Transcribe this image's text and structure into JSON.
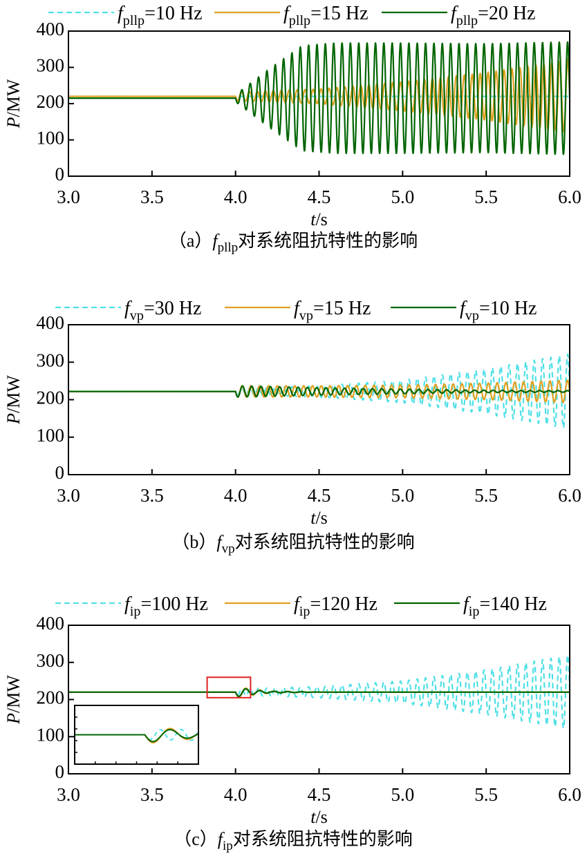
{
  "chart_data": [
    {
      "type": "line",
      "panel": "a",
      "caption_prefix": "（a）",
      "caption_sym": "f",
      "caption_sub": "pllp",
      "caption_suffix": "对系统阻抗特性的影响",
      "xlabel_sym": "t",
      "xlabel_unit": "/s",
      "ylabel_sym": "P",
      "ylabel_unit": "/MW",
      "xlim": [
        3.0,
        6.0
      ],
      "ylim": [
        0,
        400
      ],
      "xticks": [
        "3.0",
        "3.5",
        "4.0",
        "4.5",
        "5.0",
        "5.5",
        "6.0"
      ],
      "yticks": [
        "0",
        "100",
        "200",
        "300",
        "400"
      ],
      "legend_position": "top",
      "series": [
        {
          "sym": "f",
          "sub": "pllp",
          "name": "=10 Hz",
          "color": "#4fe0e6",
          "dash": true,
          "baseline": 220,
          "disturbance_t": 4.0,
          "osc_hz": 22,
          "envelope_t": [
            4.0,
            4.5,
            5.0,
            5.5,
            6.0
          ],
          "envelope_amp": [
            0,
            0,
            0,
            0,
            0
          ]
        },
        {
          "sym": "f",
          "sub": "pllp",
          "name": "=15 Hz",
          "color": "#e0a020",
          "dash": false,
          "baseline": 220,
          "disturbance_t": 4.0,
          "osc_hz": 21,
          "envelope_t": [
            4.0,
            4.5,
            5.0,
            5.5,
            6.0
          ],
          "envelope_amp": [
            12,
            20,
            40,
            65,
            100
          ]
        },
        {
          "sym": "f",
          "sub": "pllp",
          "name": "=20 Hz",
          "color": "#006400",
          "dash": false,
          "baseline": 215,
          "disturbance_t": 4.0,
          "osc_hz": 20,
          "envelope_t": [
            4.0,
            4.2,
            4.4,
            4.6,
            5.0,
            5.5,
            6.0
          ],
          "envelope_amp": [
            10,
            80,
            145,
            152,
            152,
            150,
            155
          ]
        }
      ]
    },
    {
      "type": "line",
      "panel": "b",
      "caption_prefix": "（b）",
      "caption_sym": "f",
      "caption_sub": "vp",
      "caption_suffix": "对系统阻抗特性的影响",
      "xlabel_sym": "t",
      "xlabel_unit": "/s",
      "ylabel_sym": "P",
      "ylabel_unit": "/MW",
      "xlim": [
        3.0,
        6.0
      ],
      "ylim": [
        0,
        400
      ],
      "xticks": [
        "3.0",
        "3.5",
        "4.0",
        "4.5",
        "5.0",
        "5.5",
        "6.0"
      ],
      "yticks": [
        "0",
        "100",
        "200",
        "300",
        "400"
      ],
      "legend_position": "top",
      "series": [
        {
          "sym": "f",
          "sub": "vp",
          "name": "=30 Hz",
          "color": "#4fe0e6",
          "dash": true,
          "baseline": 222,
          "disturbance_t": 4.0,
          "osc_hz": 20,
          "envelope_t": [
            4.0,
            4.5,
            5.0,
            5.5,
            6.0
          ],
          "envelope_amp": [
            8,
            15,
            30,
            60,
            100
          ]
        },
        {
          "sym": "f",
          "sub": "vp",
          "name": "=15 Hz",
          "color": "#e0a020",
          "dash": false,
          "baseline": 222,
          "disturbance_t": 4.0,
          "osc_hz": 19,
          "envelope_t": [
            4.0,
            4.5,
            5.0,
            5.5,
            6.0
          ],
          "envelope_amp": [
            15,
            15,
            17,
            22,
            30
          ]
        },
        {
          "sym": "f",
          "sub": "vp",
          "name": "=10 Hz",
          "color": "#006400",
          "dash": false,
          "baseline": 222,
          "disturbance_t": 4.0,
          "osc_hz": 18,
          "envelope_t": [
            4.0,
            4.5,
            5.0,
            5.5,
            6.0
          ],
          "envelope_amp": [
            15,
            10,
            6,
            3,
            2
          ]
        }
      ]
    },
    {
      "type": "line",
      "panel": "c",
      "caption_prefix": "（c）",
      "caption_sym": "f",
      "caption_sub": "ip",
      "caption_suffix": "对系统阻抗特性的影响",
      "xlabel_sym": "t",
      "xlabel_unit": "/s",
      "ylabel_sym": "P",
      "ylabel_unit": "/MW",
      "xlim": [
        3.0,
        6.0
      ],
      "ylim": [
        0,
        400
      ],
      "xticks": [
        "3.0",
        "3.5",
        "4.0",
        "4.5",
        "5.0",
        "5.5",
        "6.0"
      ],
      "yticks": [
        "0",
        "100",
        "200",
        "300",
        "400"
      ],
      "legend_position": "top",
      "zoom_box_t": [
        3.83,
        4.09
      ],
      "zoom_box_p": [
        205,
        260
      ],
      "inset_position": "lower-left",
      "series": [
        {
          "sym": "f",
          "sub": "ip",
          "name": "=100 Hz",
          "color": "#4fe0e6",
          "dash": true,
          "baseline": 220,
          "disturbance_t": 4.0,
          "osc_hz": 20,
          "envelope_t": [
            4.0,
            4.5,
            5.0,
            5.5,
            6.0
          ],
          "envelope_amp": [
            8,
            15,
            30,
            60,
            100
          ]
        },
        {
          "sym": "f",
          "sub": "ip",
          "name": "=120 Hz",
          "color": "#e0a020",
          "dash": false,
          "baseline": 220,
          "disturbance_t": 4.0,
          "osc_hz": 12,
          "envelope_t": [
            4.0,
            4.1,
            4.2,
            4.5,
            6.0
          ],
          "envelope_amp": [
            15,
            8,
            3,
            0,
            0
          ]
        },
        {
          "sym": "f",
          "sub": "ip",
          "name": "=140 Hz",
          "color": "#006400",
          "dash": false,
          "baseline": 220,
          "disturbance_t": 4.0,
          "osc_hz": 12,
          "envelope_t": [
            4.0,
            4.1,
            4.2,
            4.5,
            6.0
          ],
          "envelope_amp": [
            13,
            6,
            2,
            0,
            0
          ]
        }
      ]
    }
  ]
}
